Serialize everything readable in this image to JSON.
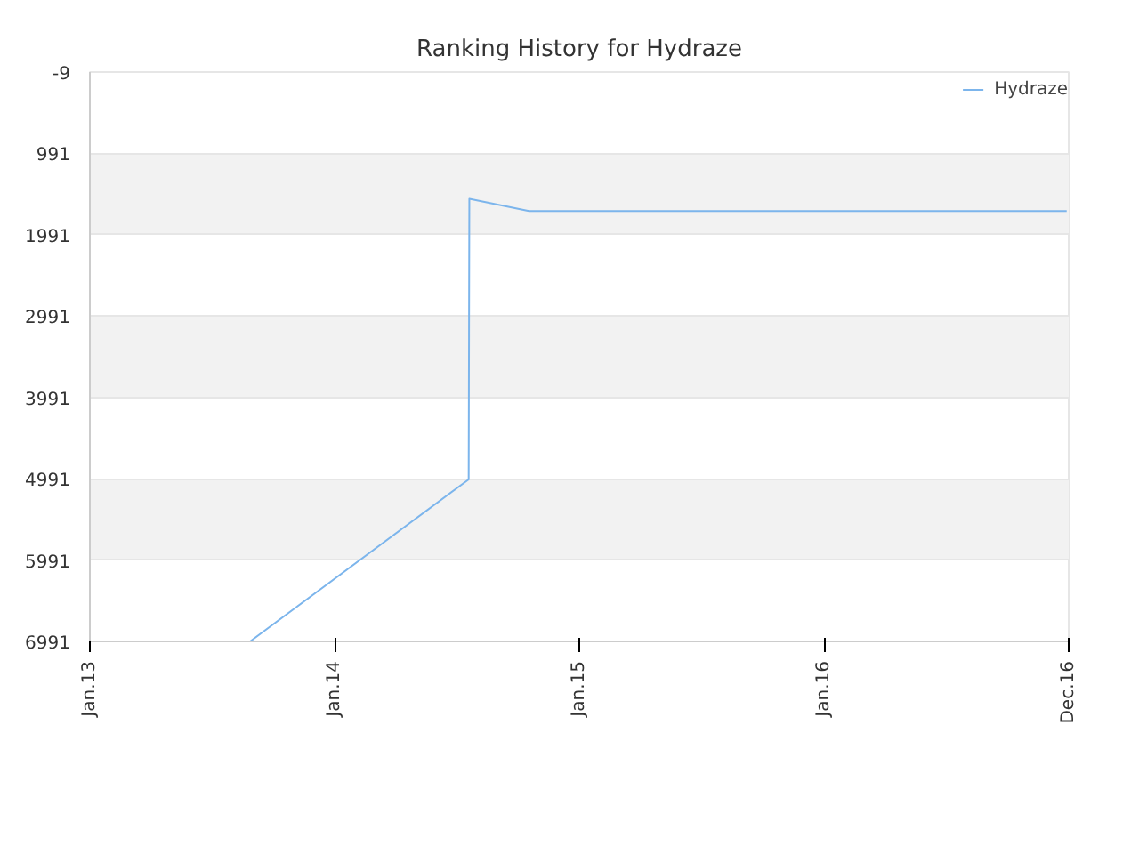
{
  "chart_data": {
    "type": "line",
    "title": "Ranking History for Hydraze",
    "x": [
      "2013-08-28",
      "2014-07-20",
      "2014-07-21",
      "2014-10-18",
      "2016-12-28"
    ],
    "series": [
      {
        "name": "Hydraze",
        "color": "#7cb5ec",
        "values": [
          6991,
          5000,
          1550,
          1700,
          1700
        ]
      }
    ],
    "xlim": [
      "2013-01-01",
      "2016-12-31"
    ],
    "xticks": [
      {
        "value": "2013-01-01",
        "label": "Jan.13"
      },
      {
        "value": "2014-01-01",
        "label": "Jan.14"
      },
      {
        "value": "2015-01-01",
        "label": "Jan.15"
      },
      {
        "value": "2016-01-01",
        "label": "Jan.16"
      },
      {
        "value": "2016-12-31",
        "label": "Dec.16"
      }
    ],
    "ylim": [
      6991,
      -9
    ],
    "yticks": [
      -9,
      991,
      1991,
      2991,
      3991,
      4991,
      5991,
      6991
    ],
    "grid": "y",
    "legend": "top right",
    "marker": "none",
    "line_style": "solid"
  }
}
